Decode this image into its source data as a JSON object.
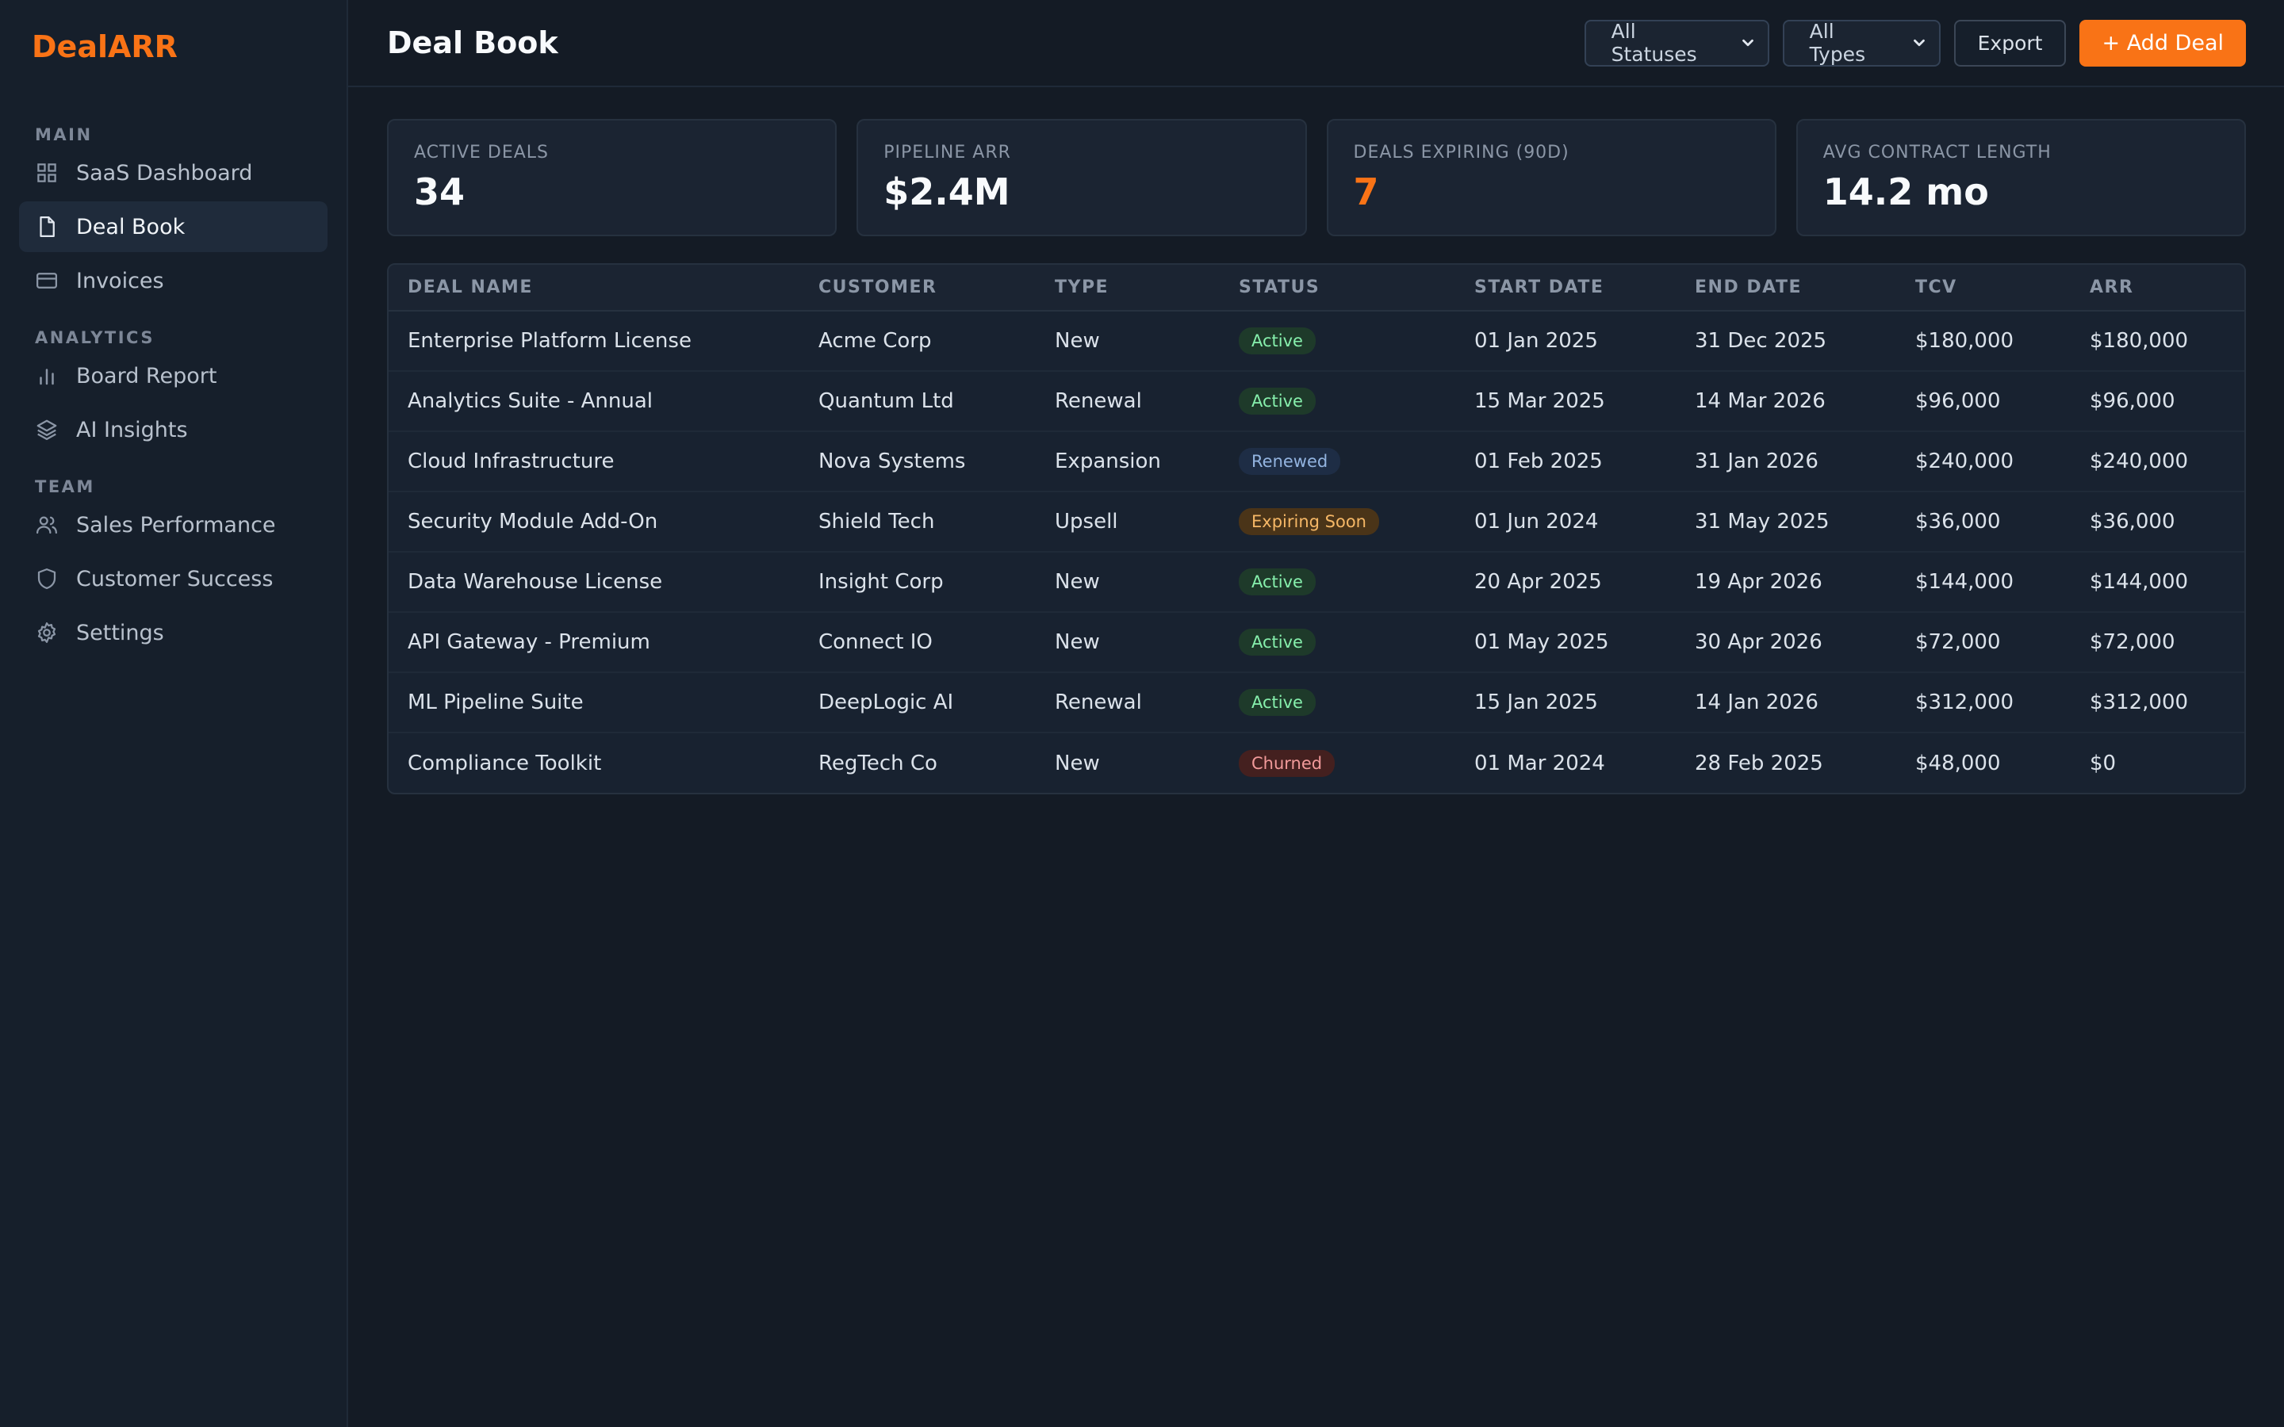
{
  "brand": {
    "name": "DealARR",
    "color": "#f97316"
  },
  "sidebar": {
    "sections": [
      {
        "label": "MAIN",
        "items": [
          {
            "label": "SaaS Dashboard",
            "icon": "grid-icon"
          },
          {
            "label": "Deal Book",
            "icon": "document-icon",
            "active": true
          },
          {
            "label": "Invoices",
            "icon": "credit-card-icon"
          }
        ]
      },
      {
        "label": "ANALYTICS",
        "items": [
          {
            "label": "Board Report",
            "icon": "bar-chart-icon"
          },
          {
            "label": "AI Insights",
            "icon": "layers-icon"
          }
        ]
      },
      {
        "label": "TEAM",
        "items": [
          {
            "label": "Sales Performance",
            "icon": "users-icon"
          },
          {
            "label": "Customer Success",
            "icon": "shield-icon"
          },
          {
            "label": "Settings",
            "icon": "gear-icon"
          }
        ]
      }
    ]
  },
  "header": {
    "title": "Deal Book",
    "status_filter": "All Statuses",
    "type_filter": "All Types",
    "export_label": "Export",
    "add_label": "+ Add Deal"
  },
  "kpis": [
    {
      "label": "ACTIVE DEALS",
      "value": "34"
    },
    {
      "label": "PIPELINE ARR",
      "value": "$2.4M"
    },
    {
      "label": "DEALS EXPIRING (90D)",
      "value": "7",
      "accent": true
    },
    {
      "label": "AVG CONTRACT LENGTH",
      "value": "14.2 mo"
    }
  ],
  "table": {
    "columns": [
      "DEAL NAME",
      "CUSTOMER",
      "TYPE",
      "STATUS",
      "START DATE",
      "END DATE",
      "TCV",
      "ARR"
    ],
    "rows": [
      [
        "Enterprise Platform License",
        "Acme Corp",
        "New",
        "Active",
        "01 Jan 2025",
        "31 Dec 2025",
        "$180,000",
        "$180,000"
      ],
      [
        "Analytics Suite - Annual",
        "Quantum Ltd",
        "Renewal",
        "Active",
        "15 Mar 2025",
        "14 Mar 2026",
        "$96,000",
        "$96,000"
      ],
      [
        "Cloud Infrastructure",
        "Nova Systems",
        "Expansion",
        "Renewed",
        "01 Feb 2025",
        "31 Jan 2026",
        "$240,000",
        "$240,000"
      ],
      [
        "Security Module Add-On",
        "Shield Tech",
        "Upsell",
        "Expiring Soon",
        "01 Jun 2024",
        "31 May 2025",
        "$36,000",
        "$36,000"
      ],
      [
        "Data Warehouse License",
        "Insight Corp",
        "New",
        "Active",
        "20 Apr 2025",
        "19 Apr 2026",
        "$144,000",
        "$144,000"
      ],
      [
        "API Gateway - Premium",
        "Connect IO",
        "New",
        "Active",
        "01 May 2025",
        "30 Apr 2026",
        "$72,000",
        "$72,000"
      ],
      [
        "ML Pipeline Suite",
        "DeepLogic AI",
        "Renewal",
        "Active",
        "15 Jan 2025",
        "14 Jan 2026",
        "$312,000",
        "$312,000"
      ],
      [
        "Compliance Toolkit",
        "RegTech Co",
        "New",
        "Churned",
        "01 Mar 2024",
        "28 Feb 2025",
        "$48,000",
        "$0"
      ]
    ]
  },
  "status_colors": {
    "Active": {
      "bg": "#1e3a2a",
      "fg": "#86efac"
    },
    "Renewed": {
      "bg": "#1e2d45",
      "fg": "#93b4e0"
    },
    "Expiring Soon": {
      "bg": "#4a3418",
      "fg": "#f5b766"
    },
    "Churned": {
      "bg": "#44201f",
      "fg": "#f19a9a"
    }
  }
}
